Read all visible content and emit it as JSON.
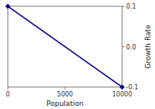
{
  "chart_data": {
    "type": "line",
    "x": [
      0,
      10000
    ],
    "values": [
      0.1,
      -0.1
    ],
    "color": "#00008B",
    "marker": "diamond",
    "xlim": [
      0,
      10000
    ],
    "ylim": [
      -0.1,
      0.1
    ],
    "xticks": [
      0,
      5000,
      10000
    ],
    "yticks": [
      -0.1,
      {
        "value": 0.0,
        "label": "0.0"
      },
      0.1
    ],
    "xlabel": "Population",
    "ylabel": "Growth Rate",
    "grid": false
  }
}
